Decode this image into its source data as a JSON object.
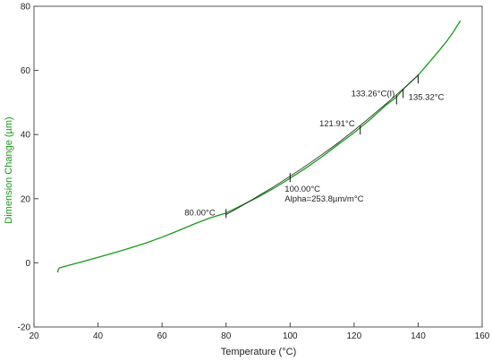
{
  "chart_data": {
    "type": "line",
    "title": "",
    "xlabel": "Temperature (°C)",
    "ylabel": "Dimension Change (µm)",
    "xlim": [
      20,
      160
    ],
    "ylim": [
      -20,
      80
    ],
    "xticks": [
      20,
      40,
      60,
      80,
      100,
      120,
      140,
      160
    ],
    "yticks": [
      -20,
      0,
      20,
      40,
      60,
      80
    ],
    "grid": false,
    "colors": {
      "curve": "#1a9a1a",
      "fit": "#222222",
      "ylabel": "#1a9a1a",
      "xlabel": "#222222",
      "axis": "#444444"
    },
    "series": [
      {
        "x": [
          27.4,
          27.6,
          28,
          30,
          35,
          40,
          45,
          50,
          55,
          60,
          65,
          70,
          75,
          80,
          85,
          90,
          95,
          100,
          105,
          110,
          115,
          120,
          125,
          130,
          133,
          136,
          140,
          143,
          146,
          149,
          151,
          153.2
        ],
        "y": [
          -3,
          -2,
          -1.6,
          -1,
          0.3,
          1.7,
          3.1,
          4.6,
          6.2,
          8.0,
          10.0,
          12.1,
          14.0,
          15.5,
          18.0,
          20.5,
          23.3,
          26.4,
          29.6,
          33.1,
          36.9,
          40.6,
          44.7,
          49.2,
          51.5,
          54.8,
          58.5,
          62.0,
          65.5,
          69.2,
          72.0,
          75.5
        ]
      },
      {
        "x": [
          80,
          85,
          90,
          95,
          100,
          105,
          110,
          115,
          120,
          125,
          130,
          133,
          136,
          140
        ],
        "y": [
          15.0,
          17.8,
          20.8,
          23.8,
          27.0,
          30.3,
          33.8,
          37.4,
          41.3,
          45.4,
          49.6,
          52.2,
          54.8,
          58.5
        ]
      }
    ],
    "markers": [
      {
        "x": 80.0,
        "y": 15.4
      },
      {
        "x": 100.0,
        "y": 26.6
      },
      {
        "x": 121.91,
        "y": 41.4
      },
      {
        "x": 133.26,
        "y": 50.8
      },
      {
        "x": 135.32,
        "y": 52.8
      },
      {
        "x": 140.0,
        "y": 57.3
      }
    ],
    "annotations": [
      {
        "lines": [
          "80.00°C"
        ],
        "x": 80.0,
        "y": 15.4
      },
      {
        "lines": [
          "100.00°C",
          "Alpha=253.8µm/m°C"
        ],
        "x": 100.0,
        "y": 26.6
      },
      {
        "lines": [
          "121.91°C"
        ],
        "x": 121.91,
        "y": 41.4
      },
      {
        "lines": [
          "133.26°C(I)"
        ],
        "x": 133.26,
        "y": 50.8
      },
      {
        "lines": [
          "135.32°C"
        ],
        "x": 135.32,
        "y": 52.8
      }
    ]
  }
}
